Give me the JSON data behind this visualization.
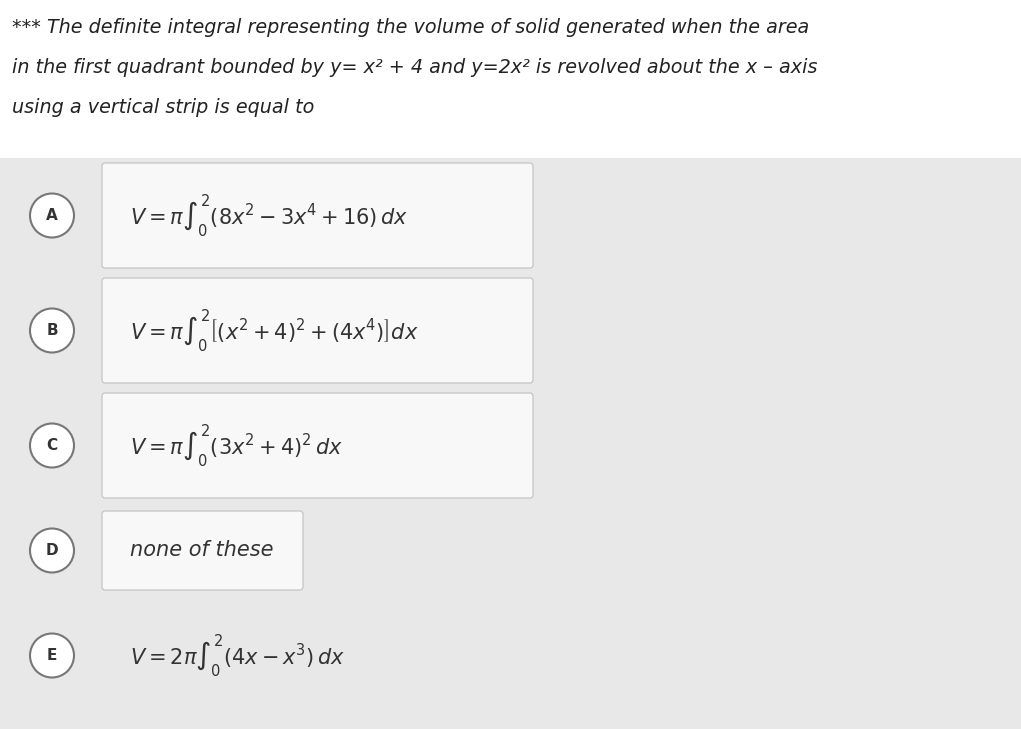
{
  "background_color": "#e8e8e8",
  "row_bg_color": "#e0e0e0",
  "box_color": "#f5f5f5",
  "title_bg": "#ffffff",
  "box_border_color": "#cccccc",
  "title_lines": [
    "*** The definite integral representing the volume of solid generated when the area",
    "in the first quadrant bounded by y= x² + 4 and y=2x² is revolved about the x – axis",
    "using a vertical strip is equal to"
  ],
  "options": [
    {
      "label": "A",
      "formula": "$V= \\pi \\int_{0}^{2}(8x^2 - 3x^4 + 16)\\,dx$",
      "has_box": true,
      "italic": false
    },
    {
      "label": "B",
      "formula": "$V= \\pi \\int_{0}^{2}\\left[(x^2+4)^2 + (4x^4)\\right]dx$",
      "has_box": true,
      "italic": false
    },
    {
      "label": "C",
      "formula": "$V= \\pi \\int_{0}^{2}(3x^2+4)^2\\,dx$",
      "has_box": true,
      "italic": false
    },
    {
      "label": "D",
      "formula": "none of these",
      "has_box": true,
      "italic": true
    },
    {
      "label": "E",
      "formula": "$V= 2\\pi \\int_{0}^{2}(4x - x^3)\\,dx$",
      "has_box": false,
      "italic": false
    }
  ],
  "fig_width": 10.21,
  "fig_height": 7.29,
  "dpi": 100
}
